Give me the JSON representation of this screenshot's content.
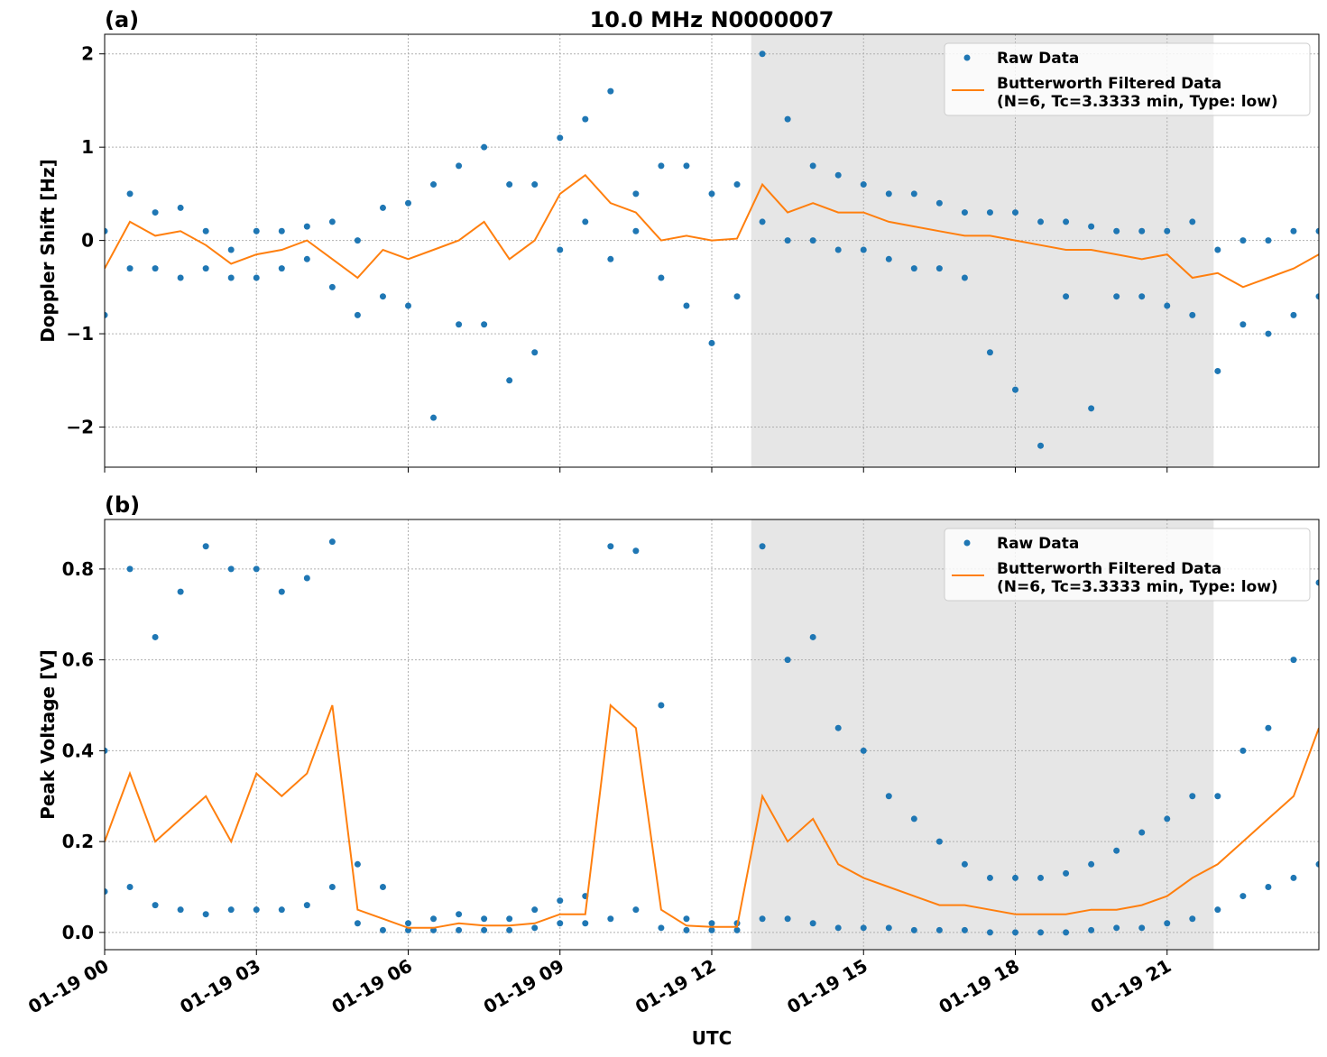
{
  "chart_data": [
    {
      "type": "line",
      "panel_label": "(a)",
      "title": "10.0 MHz N0000007",
      "y_label": "Doppler Shift [Hz]",
      "xlim": [
        0,
        24
      ],
      "xticks": [
        0,
        3,
        6,
        9,
        12,
        15,
        18,
        21
      ],
      "ylim": [
        -2.43,
        2.21
      ],
      "yticks": [
        {
          "value": -2,
          "label": "−2"
        },
        {
          "value": -1,
          "label": "−1"
        },
        0,
        1,
        2
      ],
      "grid": true,
      "legend": "upper right",
      "shade": [
        12.78,
        21.92
      ],
      "series": [
        {
          "name": "Raw Data",
          "style": "dots",
          "color": "#1f77b4",
          "x": [
            0,
            0,
            0.5,
            0.5,
            1,
            1,
            1.5,
            1.5,
            2,
            2,
            2.5,
            2.5,
            3,
            3,
            3.5,
            3.5,
            4,
            4,
            4.5,
            4.5,
            5,
            5,
            5.5,
            5.5,
            6,
            6,
            6.5,
            6.5,
            7,
            7,
            7.5,
            7.5,
            8,
            8,
            8.5,
            8.5,
            9,
            9,
            9.5,
            9.5,
            10,
            10,
            10.5,
            10.5,
            11,
            11,
            11.5,
            11.5,
            12,
            12,
            12.5,
            12.5,
            13,
            13,
            13.5,
            13.5,
            14,
            14,
            14.5,
            14.5,
            15,
            15,
            15.5,
            15.5,
            16,
            16,
            16.5,
            16.5,
            17,
            17,
            17.5,
            17.5,
            18,
            18,
            18.5,
            18.5,
            19,
            19,
            19.5,
            19.5,
            20,
            20,
            20.5,
            20.5,
            21,
            21,
            21.5,
            21.5,
            22,
            22,
            22.5,
            22.5,
            23,
            23,
            23.5,
            23.5,
            24,
            24
          ],
          "values": [
            0.1,
            -0.8,
            0.5,
            -0.3,
            0.3,
            -0.3,
            0.35,
            -0.4,
            0.1,
            -0.3,
            -0.1,
            -0.4,
            0.1,
            -0.4,
            0.1,
            -0.3,
            0.15,
            -0.2,
            0.2,
            -0.5,
            0.0,
            -0.8,
            0.35,
            -0.6,
            0.4,
            -0.7,
            0.6,
            -1.9,
            0.8,
            -0.9,
            1.0,
            -0.9,
            0.6,
            -1.5,
            0.6,
            -1.2,
            1.1,
            -0.1,
            1.3,
            0.2,
            1.6,
            -0.2,
            0.5,
            0.1,
            0.8,
            -0.4,
            0.8,
            -0.7,
            0.5,
            -1.1,
            0.6,
            -0.6,
            2.0,
            0.2,
            1.3,
            0.0,
            0.8,
            0.0,
            0.7,
            -0.1,
            0.6,
            -0.1,
            0.5,
            -0.2,
            0.5,
            -0.3,
            0.4,
            -0.3,
            0.3,
            -0.4,
            0.3,
            -1.2,
            0.3,
            -1.6,
            0.2,
            -2.2,
            0.2,
            -0.6,
            0.15,
            -1.8,
            0.1,
            -0.6,
            0.1,
            -0.6,
            0.1,
            -0.7,
            0.2,
            -0.8,
            -0.1,
            -1.4,
            0.0,
            -0.9,
            0.0,
            -1.0,
            0.1,
            -0.8,
            0.1,
            -0.6
          ]
        },
        {
          "name": "Butterworth Filtered Data",
          "name_detail": "(N=6, Tc=3.3333 min, Type: low)",
          "style": "line",
          "color": "#ff7f0e",
          "x": [
            0,
            0.5,
            1,
            1.5,
            2,
            2.5,
            3,
            3.5,
            4,
            4.5,
            5,
            5.5,
            6,
            6.5,
            7,
            7.5,
            8,
            8.5,
            9,
            9.5,
            10,
            10.5,
            11,
            11.5,
            12,
            12.5,
            13,
            13.5,
            14,
            14.5,
            15,
            15.5,
            16,
            16.5,
            17,
            17.5,
            18,
            18.5,
            19,
            19.5,
            20,
            20.5,
            21,
            21.5,
            22,
            22.5,
            23,
            23.5,
            24
          ],
          "values": [
            -0.3,
            0.2,
            0.05,
            0.1,
            -0.05,
            -0.25,
            -0.15,
            -0.1,
            0.0,
            -0.2,
            -0.4,
            -0.1,
            -0.2,
            -0.1,
            0.0,
            0.2,
            -0.2,
            0.0,
            0.5,
            0.7,
            0.4,
            0.3,
            0.0,
            0.05,
            0.0,
            0.02,
            0.6,
            0.3,
            0.4,
            0.3,
            0.3,
            0.2,
            0.15,
            0.1,
            0.05,
            0.05,
            0.0,
            -0.05,
            -0.1,
            -0.1,
            -0.15,
            -0.2,
            -0.15,
            -0.4,
            -0.35,
            -0.5,
            -0.4,
            -0.3,
            -0.15
          ]
        }
      ]
    },
    {
      "type": "line",
      "panel_label": "(b)",
      "y_label": "Peak Voltage [V]",
      "x_label": "UTC",
      "xlim": [
        0,
        24
      ],
      "xticks": [
        {
          "value": 0,
          "label": "01-19 00"
        },
        {
          "value": 3,
          "label": "01-19 03"
        },
        {
          "value": 6,
          "label": "01-19 06"
        },
        {
          "value": 9,
          "label": "01-19 09"
        },
        {
          "value": 12,
          "label": "01-19 12"
        },
        {
          "value": 15,
          "label": "01-19 15"
        },
        {
          "value": 18,
          "label": "01-19 18"
        },
        {
          "value": 21,
          "label": "01-19 21"
        }
      ],
      "ylim": [
        -0.038,
        0.909
      ],
      "yticks": [
        {
          "value": 0,
          "label": "0.0"
        },
        0.2,
        0.4,
        0.6,
        0.8
      ],
      "grid": true,
      "legend": "upper right",
      "shade": [
        12.78,
        21.92
      ],
      "series": [
        {
          "name": "Raw Data",
          "style": "dots",
          "color": "#1f77b4",
          "x": [
            0,
            0,
            0.5,
            0.5,
            1,
            1,
            1.5,
            1.5,
            2,
            2,
            2.5,
            2.5,
            3,
            3,
            3.5,
            3.5,
            4,
            4,
            4.5,
            4.5,
            5,
            5,
            5.5,
            5.5,
            6,
            6,
            6.5,
            6.5,
            7,
            7,
            7.5,
            7.5,
            8,
            8,
            8.5,
            8.5,
            9,
            9,
            9.5,
            9.5,
            10,
            10,
            10.5,
            10.5,
            11,
            11,
            11.5,
            11.5,
            12,
            12,
            12.5,
            12.5,
            13,
            13,
            13.5,
            13.5,
            14,
            14,
            14.5,
            14.5,
            15,
            15,
            15.5,
            15.5,
            16,
            16,
            16.5,
            16.5,
            17,
            17,
            17.5,
            17.5,
            18,
            18,
            18.5,
            18.5,
            19,
            19,
            19.5,
            19.5,
            20,
            20,
            20.5,
            20.5,
            21,
            21,
            21.5,
            21.5,
            22,
            22,
            22.5,
            22.5,
            23,
            23,
            23.5,
            23.5,
            24,
            24
          ],
          "values": [
            0.4,
            0.09,
            0.8,
            0.1,
            0.65,
            0.06,
            0.75,
            0.05,
            0.85,
            0.04,
            0.8,
            0.05,
            0.8,
            0.05,
            0.75,
            0.05,
            0.78,
            0.06,
            0.86,
            0.1,
            0.15,
            0.02,
            0.1,
            0.005,
            0.02,
            0.005,
            0.03,
            0.005,
            0.04,
            0.005,
            0.03,
            0.005,
            0.03,
            0.005,
            0.05,
            0.01,
            0.07,
            0.02,
            0.08,
            0.02,
            0.85,
            0.03,
            0.84,
            0.05,
            0.5,
            0.01,
            0.03,
            0.005,
            0.02,
            0.005,
            0.02,
            0.005,
            0.85,
            0.03,
            0.6,
            0.03,
            0.65,
            0.02,
            0.45,
            0.01,
            0.4,
            0.01,
            0.3,
            0.01,
            0.25,
            0.005,
            0.2,
            0.005,
            0.15,
            0.005,
            0.12,
            0.0,
            0.12,
            0.0,
            0.12,
            0.0,
            0.13,
            0.0,
            0.15,
            0.005,
            0.18,
            0.01,
            0.22,
            0.01,
            0.25,
            0.02,
            0.3,
            0.03,
            0.3,
            0.05,
            0.4,
            0.08,
            0.45,
            0.1,
            0.6,
            0.12,
            0.77,
            0.15
          ]
        },
        {
          "name": "Butterworth Filtered Data",
          "name_detail": "(N=6, Tc=3.3333 min, Type: low)",
          "style": "line",
          "color": "#ff7f0e",
          "x": [
            0,
            0.5,
            1,
            1.5,
            2,
            2.5,
            3,
            3.5,
            4,
            4.5,
            5,
            5.5,
            6,
            6.5,
            7,
            7.5,
            8,
            8.5,
            9,
            9.5,
            10,
            10.5,
            11,
            11.5,
            12,
            12.5,
            13,
            13.5,
            14,
            14.5,
            15,
            15.5,
            16,
            16.5,
            17,
            17.5,
            18,
            18.5,
            19,
            19.5,
            20,
            20.5,
            21,
            21.5,
            22,
            22.5,
            23,
            23.5,
            24
          ],
          "values": [
            0.2,
            0.35,
            0.2,
            0.25,
            0.3,
            0.2,
            0.35,
            0.3,
            0.35,
            0.5,
            0.05,
            0.03,
            0.01,
            0.01,
            0.02,
            0.015,
            0.015,
            0.02,
            0.04,
            0.04,
            0.5,
            0.45,
            0.05,
            0.015,
            0.012,
            0.012,
            0.3,
            0.2,
            0.25,
            0.15,
            0.12,
            0.1,
            0.08,
            0.06,
            0.06,
            0.05,
            0.04,
            0.04,
            0.04,
            0.05,
            0.05,
            0.06,
            0.08,
            0.12,
            0.15,
            0.2,
            0.25,
            0.3,
            0.45
          ]
        }
      ]
    }
  ]
}
